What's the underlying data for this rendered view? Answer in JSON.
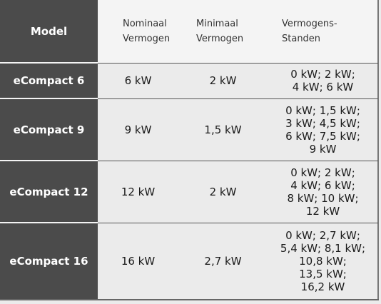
{
  "table": {
    "header": [
      [
        "Model"
      ],
      [
        "Nominaal",
        "Vermogen"
      ],
      [
        "Minimaal",
        "Vermogen"
      ],
      [
        "Vermogens-",
        "Standen"
      ]
    ],
    "rows": [
      [
        [
          "eCompact 6"
        ],
        [
          "6 kW"
        ],
        [
          "2 kW"
        ],
        [
          "0 kW; 2 kW;",
          "4 kW; 6 kW"
        ]
      ],
      [
        [
          "eCompact 9"
        ],
        [
          "9 kW"
        ],
        [
          "1,5 kW"
        ],
        [
          "0 kW; 1,5 kW;",
          "3 kW; 4,5 kW;",
          "6 kW; 7,5 kW;",
          "9 kW"
        ]
      ],
      [
        [
          "eCompact 12"
        ],
        [
          "12 kW"
        ],
        [
          "2 kW"
        ],
        [
          "0 kW; 2 kW;",
          "4 kW; 6 kW;",
          "8 kW; 10 kW;",
          "12 kW"
        ]
      ],
      [
        [
          "eCompact 16"
        ],
        [
          "16 kW"
        ],
        [
          "2,7 kW"
        ],
        [
          "0 kW; 2,7 kW;",
          "5,4 kW; 8,1 kW;",
          "10,8 kW;",
          "13,5 kW;",
          "16,2 kW"
        ]
      ]
    ]
  }
}
